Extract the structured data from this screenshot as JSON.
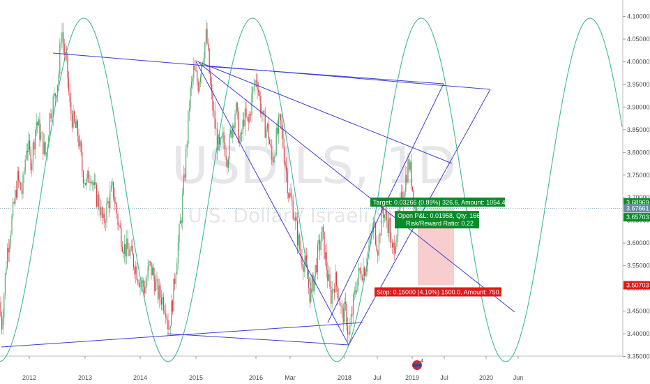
{
  "chart_data": {
    "type": "candlestick",
    "symbol": "USDILS, 1D",
    "description": "U.S. Dollar / Israeli Shekel",
    "ylim": [
      3.34,
      4.11
    ],
    "y_ticks": [
      "4.10000",
      "4.05000",
      "4.00000",
      "3.95000",
      "3.90000",
      "3.85000",
      "3.80000",
      "3.75000",
      "3.70000",
      "3.65000",
      "3.60000",
      "3.55000",
      "3.50000",
      "3.45000",
      "3.40000",
      "3.35000"
    ],
    "x_ticks": [
      "2012",
      "2013",
      "2014",
      "2015",
      "2016",
      "Mar",
      "2018",
      "Jul",
      "2019",
      "Jul",
      "2020",
      "Jun"
    ],
    "price_tags": [
      {
        "label": "3.68969",
        "value": 3.68969,
        "color": "#0b8a2a"
      },
      {
        "label": "3.67661",
        "value": 3.67661,
        "color": "#5f8fa6"
      },
      {
        "label": "3.65703",
        "value": 3.65703,
        "color": "#0b8a2a"
      },
      {
        "label": "3.50703",
        "value": 3.50703,
        "color": "#e01919"
      }
    ],
    "position": {
      "entry": 3.65703,
      "target": 3.68969,
      "stop": 3.50703,
      "target_label": "Target: 0.03266 (0.89%) 326.6, Amount: 1054.41",
      "pnl_label": "Open P&L: 0.01958, Qty: 1666",
      "rr_label": "Risk/Reward Ratio: 0.22",
      "stop_label": "Stop: 0.15000 (4.10%) 1500.0, Amount: 750.1"
    },
    "colors": {
      "up": "#4ca96b",
      "down": "#d6434a",
      "trendline": "#3d3dd4",
      "sine": "#3fb89a",
      "profit": "#bfe6c8",
      "loss": "#f6c0c0"
    },
    "price_path": [
      [
        0,
        3.47
      ],
      [
        2,
        3.41
      ],
      [
        10,
        3.58
      ],
      [
        18,
        3.66
      ],
      [
        25,
        3.74
      ],
      [
        32,
        3.71
      ],
      [
        38,
        3.82
      ],
      [
        45,
        3.78
      ],
      [
        52,
        3.87
      ],
      [
        58,
        3.84
      ],
      [
        66,
        3.79
      ],
      [
        72,
        3.89
      ],
      [
        78,
        3.92
      ],
      [
        84,
        3.97
      ],
      [
        88,
        4.08
      ],
      [
        92,
        4.02
      ],
      [
        96,
        3.99
      ],
      [
        100,
        3.9
      ],
      [
        106,
        3.86
      ],
      [
        112,
        3.84
      ],
      [
        118,
        3.76
      ],
      [
        124,
        3.73
      ],
      [
        130,
        3.76
      ],
      [
        136,
        3.71
      ],
      [
        142,
        3.69
      ],
      [
        148,
        3.64
      ],
      [
        155,
        3.69
      ],
      [
        162,
        3.72
      ],
      [
        170,
        3.64
      ],
      [
        178,
        3.59
      ],
      [
        186,
        3.58
      ],
      [
        194,
        3.55
      ],
      [
        200,
        3.52
      ],
      [
        208,
        3.5
      ],
      [
        214,
        3.55
      ],
      [
        220,
        3.53
      ],
      [
        226,
        3.49
      ],
      [
        232,
        3.48
      ],
      [
        238,
        3.46
      ],
      [
        242,
        3.41
      ],
      [
        248,
        3.48
      ],
      [
        254,
        3.58
      ],
      [
        260,
        3.66
      ],
      [
        266,
        3.78
      ],
      [
        272,
        3.92
      ],
      [
        278,
        3.98
      ],
      [
        284,
        3.95
      ],
      [
        290,
        4.01
      ],
      [
        296,
        4.06
      ],
      [
        302,
        3.94
      ],
      [
        308,
        3.86
      ],
      [
        314,
        3.8
      ],
      [
        320,
        3.83
      ],
      [
        326,
        3.79
      ],
      [
        332,
        3.85
      ],
      [
        338,
        3.9
      ],
      [
        344,
        3.81
      ],
      [
        350,
        3.88
      ],
      [
        356,
        3.86
      ],
      [
        362,
        3.93
      ],
      [
        368,
        3.97
      ],
      [
        372,
        3.92
      ],
      [
        378,
        3.86
      ],
      [
        384,
        3.85
      ],
      [
        390,
        3.78
      ],
      [
        396,
        3.83
      ],
      [
        402,
        3.87
      ],
      [
        408,
        3.79
      ],
      [
        414,
        3.71
      ],
      [
        420,
        3.68
      ],
      [
        426,
        3.62
      ],
      [
        432,
        3.57
      ],
      [
        438,
        3.55
      ],
      [
        444,
        3.49
      ],
      [
        450,
        3.52
      ],
      [
        456,
        3.58
      ],
      [
        462,
        3.62
      ],
      [
        468,
        3.55
      ],
      [
        474,
        3.48
      ],
      [
        480,
        3.52
      ],
      [
        486,
        3.49
      ],
      [
        490,
        3.44
      ],
      [
        496,
        3.45
      ],
      [
        500,
        3.39
      ],
      [
        506,
        3.46
      ],
      [
        512,
        3.52
      ],
      [
        518,
        3.54
      ],
      [
        524,
        3.55
      ],
      [
        530,
        3.6
      ],
      [
        536,
        3.64
      ],
      [
        542,
        3.59
      ],
      [
        548,
        3.68
      ],
      [
        552,
        3.66
      ],
      [
        558,
        3.64
      ],
      [
        562,
        3.57
      ],
      [
        568,
        3.62
      ],
      [
        574,
        3.68
      ],
      [
        580,
        3.73
      ],
      [
        586,
        3.78
      ],
      [
        590,
        3.74
      ],
      [
        594,
        3.69
      ],
      [
        598,
        3.67
      ]
    ]
  }
}
